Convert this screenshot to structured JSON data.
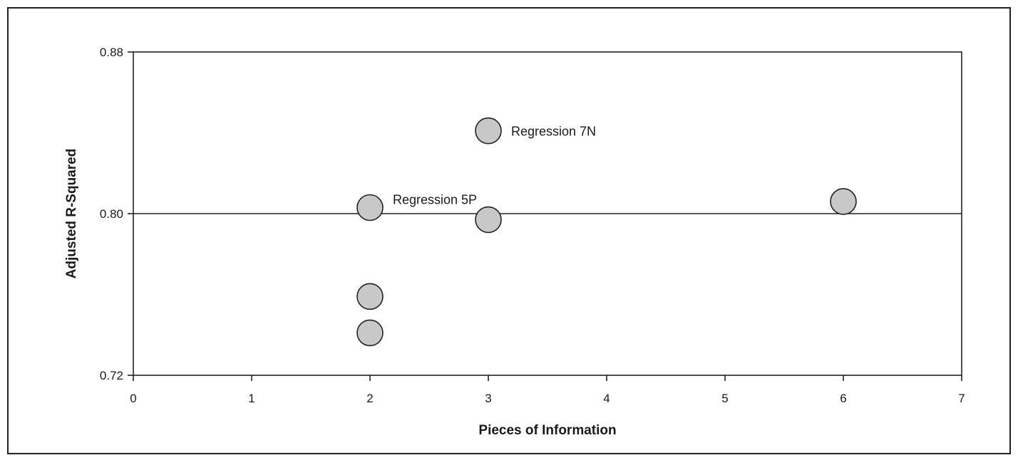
{
  "chart_data": {
    "type": "scatter",
    "xlabel": "Pieces of Information",
    "ylabel": "Adjusted R-Squared",
    "xlim": [
      0,
      7
    ],
    "ylim": [
      0.72,
      0.88
    ],
    "x_ticks": [
      "0",
      "1",
      "2",
      "3",
      "4",
      "5",
      "6",
      "7"
    ],
    "y_ticks": [
      "0.72",
      "0.80",
      "0.88"
    ],
    "reference_line_y": 0.8,
    "grid": false,
    "series": [
      {
        "points": [
          {
            "x": 2,
            "y": 0.803
          },
          {
            "x": 2,
            "y": 0.759
          },
          {
            "x": 2,
            "y": 0.741
          },
          {
            "x": 3,
            "y": 0.841
          },
          {
            "x": 3,
            "y": 0.797
          },
          {
            "x": 6,
            "y": 0.806
          }
        ]
      }
    ],
    "annotations": [
      {
        "text": "Regression 7N",
        "x": 3,
        "y": 0.841
      },
      {
        "text": "Regression 5P",
        "x": 2,
        "y": 0.803
      }
    ],
    "colors": {
      "marker_fill": "#c8c8c8",
      "marker_stroke": "#222222",
      "axis": "#222222"
    }
  }
}
